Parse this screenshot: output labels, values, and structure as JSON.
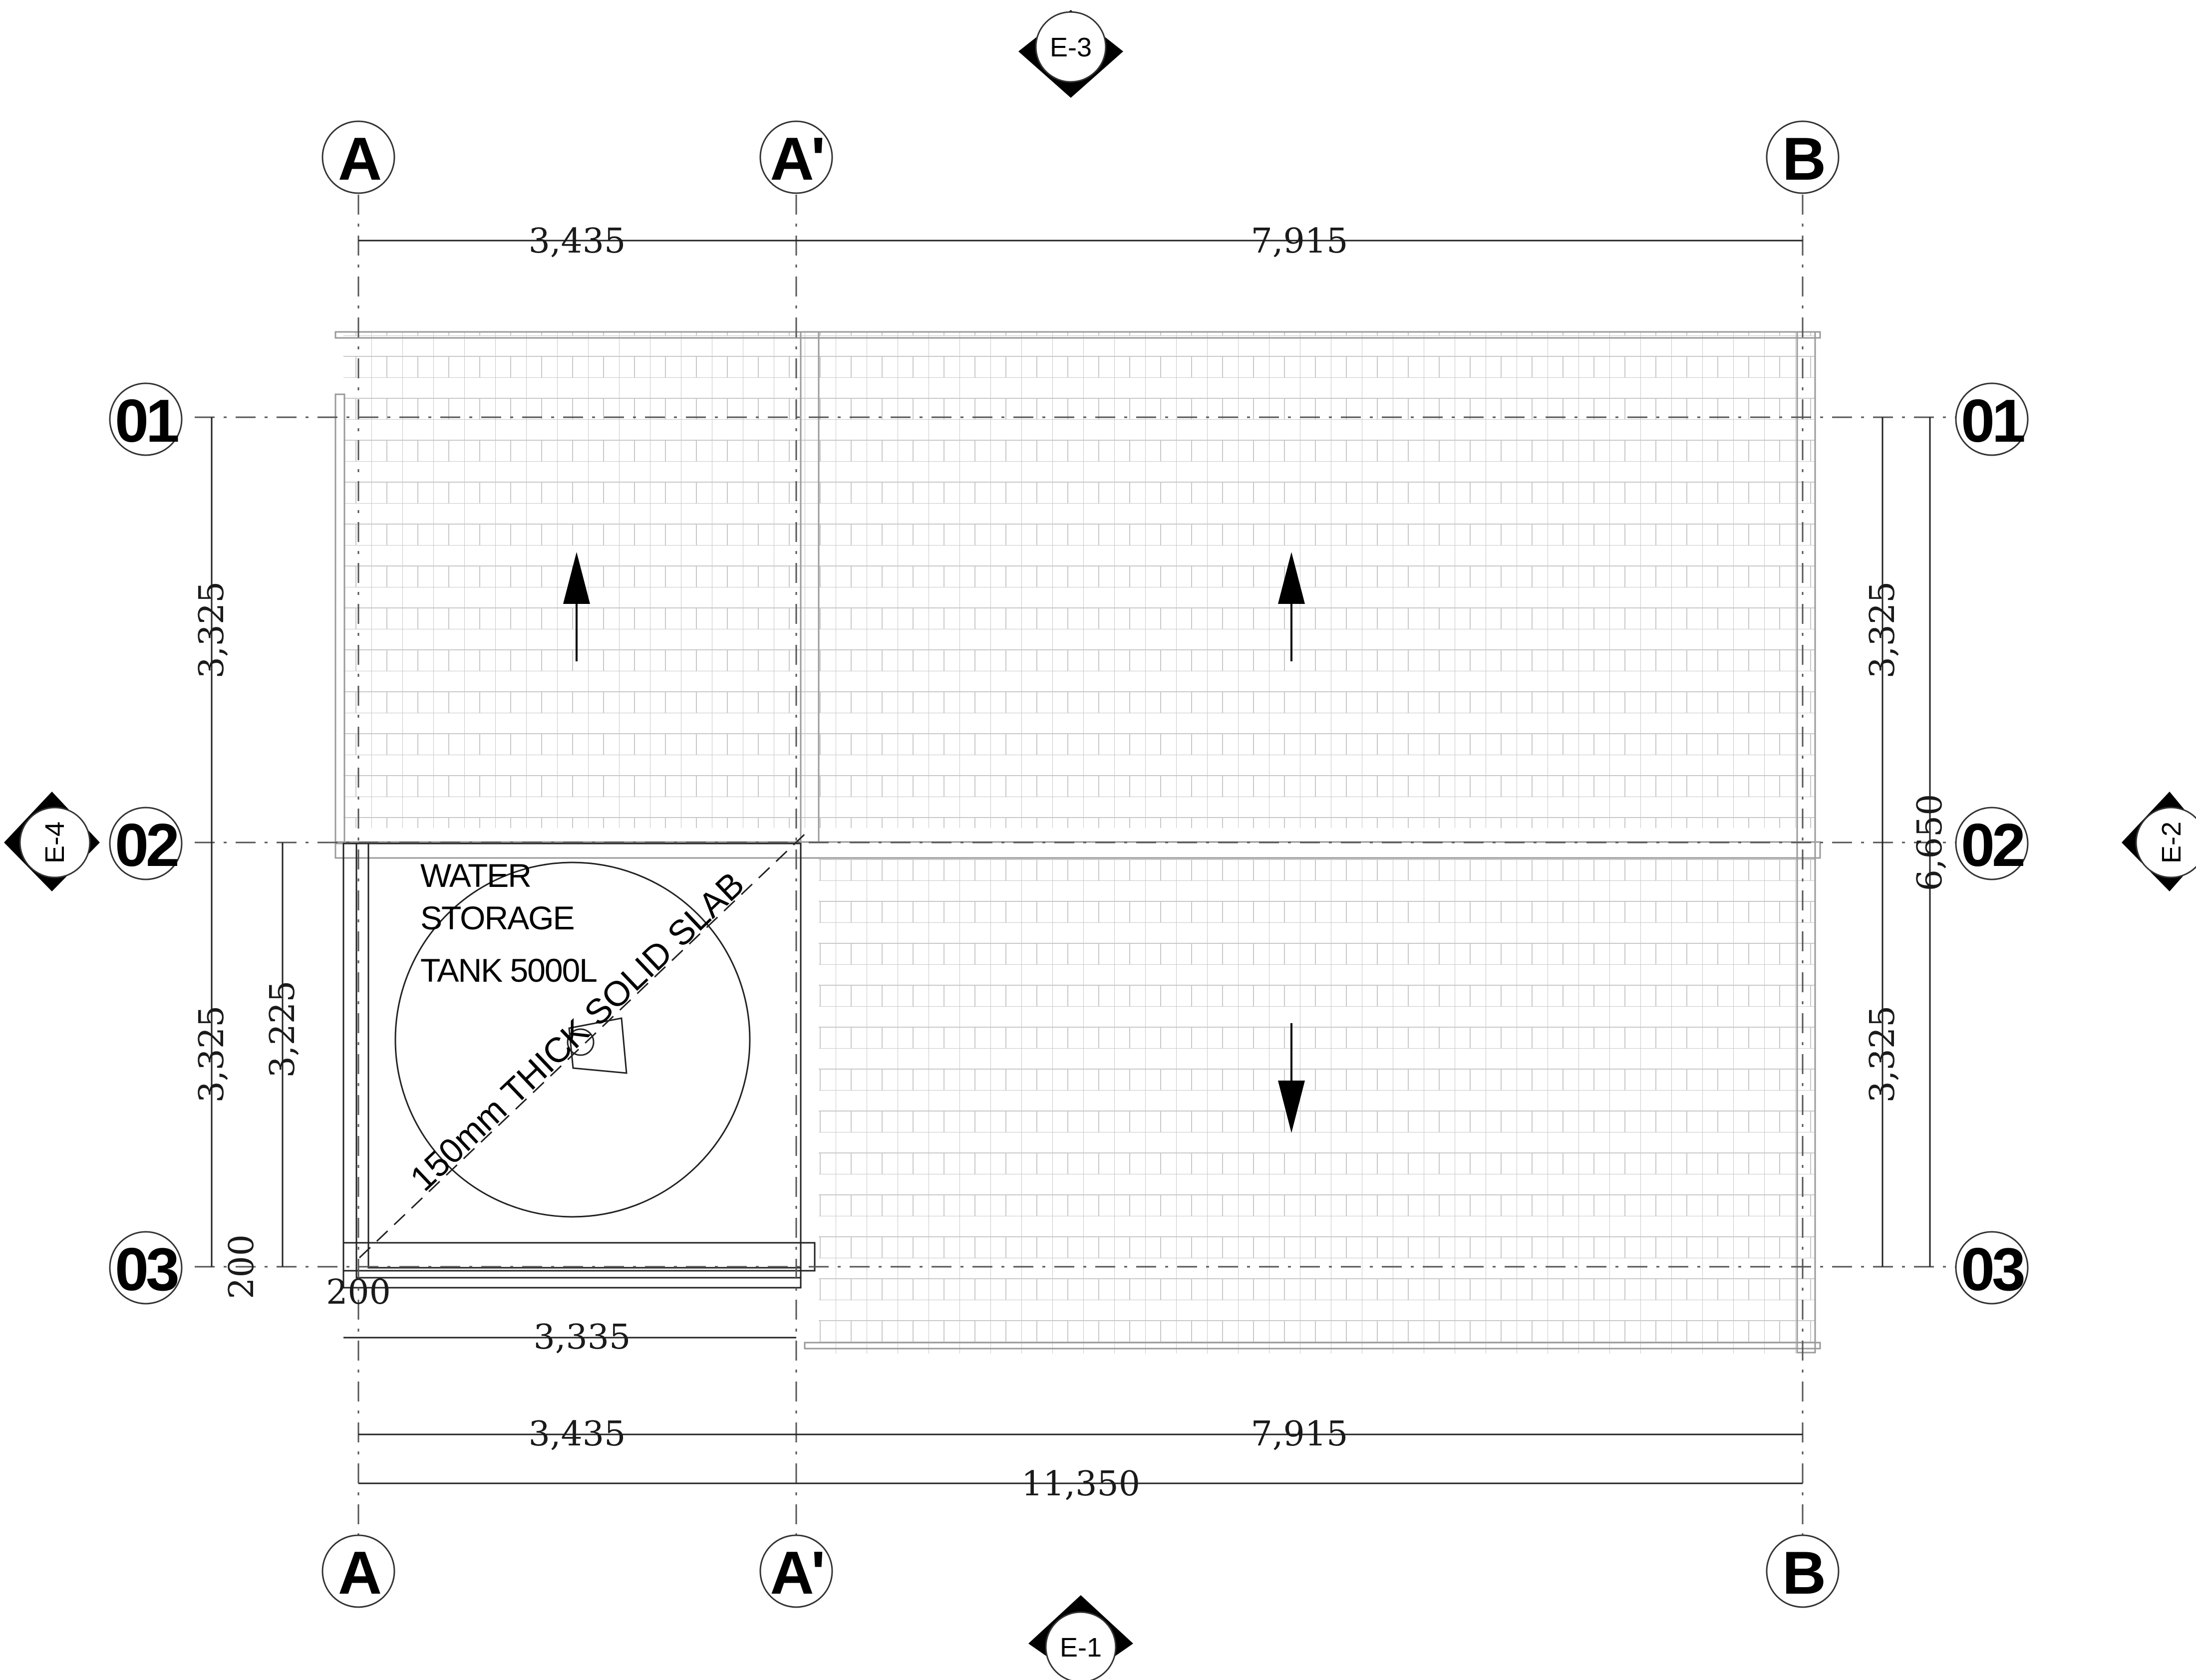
{
  "grid": {
    "columns": [
      "A",
      "A'",
      "B"
    ],
    "rows": [
      "01",
      "02",
      "03"
    ]
  },
  "elevation_markers": {
    "top": "E-3",
    "right": "E-2",
    "bottom": "E-1",
    "left": "E-4"
  },
  "dimensions": {
    "top_a_a1": "3,435",
    "top_a1_b": "7,915",
    "bottom_a_a1": "3,435",
    "bottom_a1_b": "7,915",
    "bottom_total": "11,350",
    "tank_width": "3,335",
    "corner_x": "200",
    "left_01_02": "3,325",
    "left_02_03": "3,325",
    "left_tank_height": "3,225",
    "left_corner_y": "200",
    "right_01_02": "3,325",
    "right_02_03": "3,325",
    "right_total": "6,650"
  },
  "annotations": {
    "tank_line1": "WATER",
    "tank_line2": "STORAGE",
    "tank_line3": "TANK 5000L",
    "slab": "150mm THICK SOLID SLAB"
  }
}
